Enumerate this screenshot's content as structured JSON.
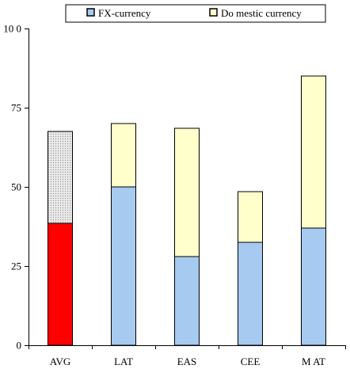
{
  "chart_data": {
    "type": "bar",
    "stacked": true,
    "categories": [
      "AVG",
      "LAT",
      "EAS",
      "CEE",
      "MAT"
    ],
    "series": [
      {
        "name": "FX-currency",
        "values": [
          38.5,
          50,
          28,
          32.5,
          37
        ],
        "color": "#a6caf0",
        "highlight": {
          "index": 0,
          "color": "#ff0000"
        }
      },
      {
        "name": "Domestic currency",
        "values": [
          29,
          20,
          40.5,
          16,
          48
        ],
        "color": "#ffffcc",
        "highlight": {
          "index": 0,
          "color": "#dcdcdc",
          "pattern": "dotted"
        }
      }
    ],
    "ylim": [
      0,
      100
    ],
    "yticks": [
      0,
      25,
      50,
      75,
      100
    ],
    "ytick_labels": [
      "0",
      "25",
      "50",
      "75",
      "10 0"
    ],
    "xtick_labels": [
      "AVG",
      "LAT",
      "EAS",
      "CEE",
      "M AT"
    ],
    "grid": false,
    "legend": {
      "placement": "top",
      "entries": [
        "FX-currency",
        "Do mestic currency"
      ]
    }
  }
}
